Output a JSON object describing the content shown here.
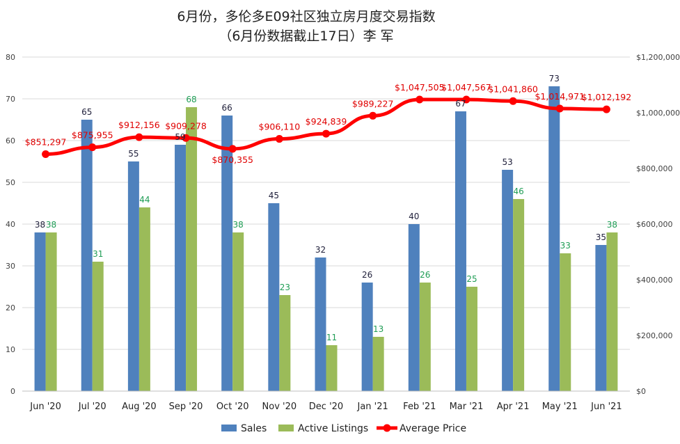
{
  "chart_data": {
    "type": "bar",
    "title": "6月份，多伦多E09社区独立房月度交易指数",
    "subtitle": "（6月份数据截止17日）李 军",
    "categories": [
      "Jun '20",
      "Jul '20",
      "Aug '20",
      "Sep '20",
      "Oct '20",
      "Nov '20",
      "Dec '20",
      "Jan '21",
      "Feb '21",
      "Mar '21",
      "Apr '21",
      "May '21",
      "Jun '21"
    ],
    "series": [
      {
        "name": "Sales",
        "type": "bar",
        "axis": "left",
        "color": "#4f81bd",
        "values": [
          38,
          65,
          55,
          59,
          66,
          45,
          32,
          26,
          40,
          67,
          53,
          73,
          35
        ]
      },
      {
        "name": "Active Listings",
        "type": "bar",
        "axis": "left",
        "color": "#9bbb59",
        "values": [
          38,
          31,
          44,
          68,
          38,
          23,
          11,
          13,
          26,
          25,
          46,
          33,
          38
        ]
      },
      {
        "name": "Average Price",
        "type": "line",
        "axis": "right",
        "color": "#ff0000",
        "values": [
          851297,
          875955,
          912156,
          909278,
          870355,
          906110,
          924839,
          989227,
          1047505,
          1047567,
          1041860,
          1014971,
          1012192
        ],
        "labels": [
          "$851,297",
          "$875,955",
          "$912,156",
          "$909,278",
          "$870,355",
          "$906,110",
          "$924,839",
          "$989,227",
          "$1,047,505",
          "$1,047,567",
          "$1,041,860",
          "$1,014,971",
          "$1,012,192"
        ]
      }
    ],
    "y_left": {
      "min": 0,
      "max": 80,
      "step": 10,
      "ticks": [
        "0",
        "10",
        "20",
        "30",
        "40",
        "50",
        "60",
        "70",
        "80"
      ]
    },
    "y_right": {
      "min": 0,
      "max": 1200000,
      "step": 200000,
      "ticks": [
        "$0",
        "$200,000",
        "$400,000",
        "$600,000",
        "$800,000",
        "$1,000,000",
        "$1,200,000"
      ]
    },
    "grid": true,
    "legend": {
      "position": "bottom",
      "entries": [
        "Sales",
        "Active Listings",
        "Average Price"
      ]
    },
    "label_colors": {
      "sales": "#1f1f3a",
      "active": "#1f9d55",
      "price": "#e00000"
    }
  }
}
